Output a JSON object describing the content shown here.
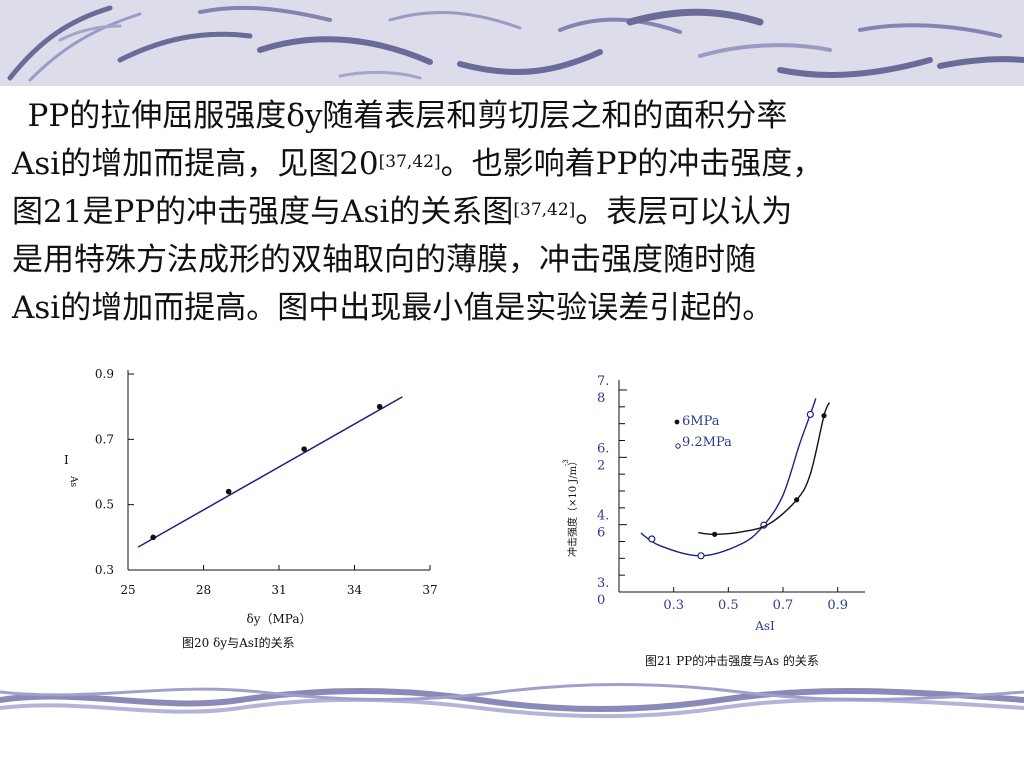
{
  "paragraph": {
    "line1": "PP的拉伸屈服强度δy随着表层和剪切层之和的面积分率",
    "line2_a": "Asi的增加而提高，见图20",
    "line2_ref": "[37,42]",
    "line2_b": "。也影响着PP的冲击强度，",
    "line3_a": "图21是PP的冲击强度与Asi的关系图",
    "line3_ref": "[37,42]",
    "line3_b": "。表层可以认为",
    "line4": "是用特殊方法成形的双轴取向的薄膜，冲击强度随时随",
    "line5": "Asi的增加而提高。图中出现最小值是实验误差引起的。"
  },
  "figure20": {
    "caption": "图20  δy与AsⅠ的关系",
    "ylabel_main": "Ⅰ",
    "ylabel_sub": "As",
    "xlabel": "δy（MPa）"
  },
  "figure21": {
    "caption": "图21 PP的冲击强度与As 的关系",
    "ylabel": "冲击强度（×10  J/m）",
    "ylabel_exp": "-3",
    "xlabel": "AsⅠ",
    "legend": [
      "6MPa",
      "9.2MPa"
    ]
  },
  "chart_data": [
    {
      "type": "scatter",
      "title": "图20  δy与AsⅠ的关系",
      "xlabel": "δy（MPa）",
      "ylabel": "Ⅰ As",
      "xlim": [
        25,
        37
      ],
      "ylim": [
        0.3,
        0.9
      ],
      "x_ticks": [
        "25",
        "28",
        "31",
        "34",
        "37"
      ],
      "y_ticks": [
        "0.9",
        "0.7",
        "0.5",
        "0.3"
      ],
      "points": [
        {
          "x": 26.0,
          "y": 0.4
        },
        {
          "x": 29.0,
          "y": 0.54
        },
        {
          "x": 32.0,
          "y": 0.67
        },
        {
          "x": 35.0,
          "y": 0.8
        }
      ],
      "fit_line": [
        {
          "x": 25.4,
          "y": 0.37
        },
        {
          "x": 35.9,
          "y": 0.83
        }
      ]
    },
    {
      "type": "line",
      "title": "图21 PP的冲击强度与As 的关系",
      "xlabel": "AsⅠ",
      "ylabel": "冲击强度（×10-3 J/m）",
      "xlim": [
        0.1,
        1.0
      ],
      "ylim": [
        3.0,
        7.8
      ],
      "x_ticks": [
        "0.3",
        "0.5",
        "0.7",
        "0.9"
      ],
      "y_ticks": [
        {
          "text": "7.",
          "text2": "8",
          "value": 7.8
        },
        {
          "text": "6.",
          "text2": "2",
          "value": 6.2
        },
        {
          "text": "4.",
          "text2": "6",
          "value": 4.6
        },
        {
          "text": "3.",
          "text2": "0",
          "value": 3.0
        }
      ],
      "legend_position": "top-left",
      "series": [
        {
          "name": "9.2MPa",
          "marker": "open",
          "color": "#1a237e",
          "points": [
            {
              "x": 0.22,
              "y": 4.26
            },
            {
              "x": 0.4,
              "y": 3.86
            },
            {
              "x": 0.63,
              "y": 4.59
            },
            {
              "x": 0.8,
              "y": 7.22
            }
          ],
          "curve": [
            {
              "x": 0.18,
              "y": 4.4
            },
            {
              "x": 0.25,
              "y": 4.1
            },
            {
              "x": 0.4,
              "y": 3.86
            },
            {
              "x": 0.55,
              "y": 4.15
            },
            {
              "x": 0.63,
              "y": 4.59
            },
            {
              "x": 0.7,
              "y": 5.3
            },
            {
              "x": 0.76,
              "y": 6.5
            },
            {
              "x": 0.8,
              "y": 7.22
            },
            {
              "x": 0.82,
              "y": 7.6
            }
          ]
        },
        {
          "name": "6MPa",
          "marker": "filled",
          "color": "#111111",
          "points": [
            {
              "x": 0.45,
              "y": 4.37
            },
            {
              "x": 0.75,
              "y": 5.19
            },
            {
              "x": 0.85,
              "y": 7.19
            }
          ],
          "curve": [
            {
              "x": 0.39,
              "y": 4.41
            },
            {
              "x": 0.45,
              "y": 4.37
            },
            {
              "x": 0.55,
              "y": 4.43
            },
            {
              "x": 0.65,
              "y": 4.62
            },
            {
              "x": 0.75,
              "y": 5.19
            },
            {
              "x": 0.8,
              "y": 5.8
            },
            {
              "x": 0.85,
              "y": 7.19
            },
            {
              "x": 0.87,
              "y": 7.5
            }
          ]
        }
      ]
    }
  ]
}
